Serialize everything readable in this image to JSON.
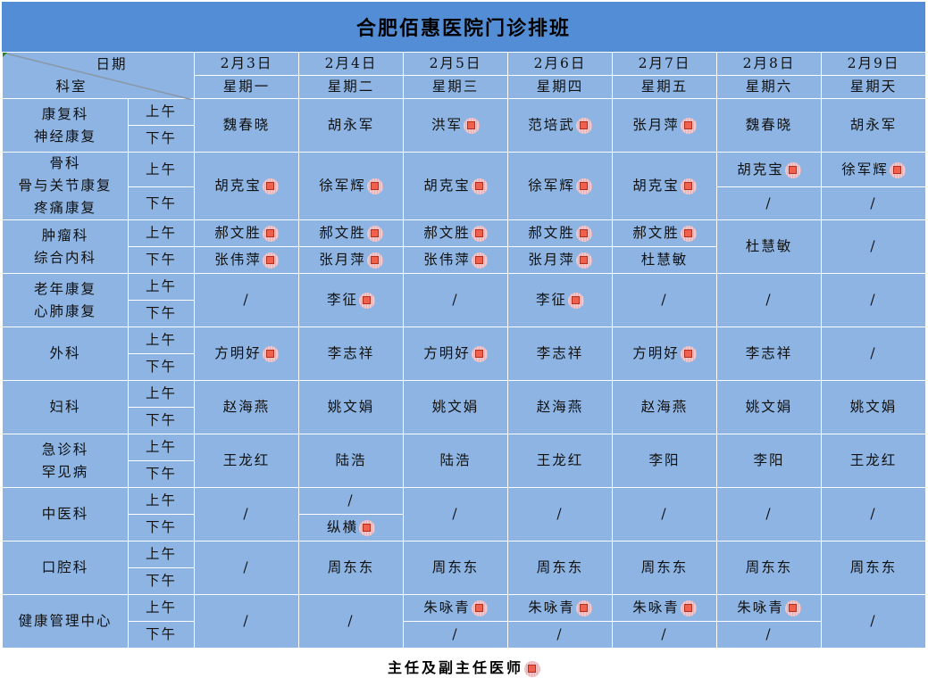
{
  "title": "合肥佰惠医院门诊排班",
  "header": {
    "date_label": "日期",
    "dept_label": "科室",
    "days": [
      {
        "date": "2月3日",
        "weekday": "星期一"
      },
      {
        "date": "2月4日",
        "weekday": "星期二"
      },
      {
        "date": "2月5日",
        "weekday": "星期三"
      },
      {
        "date": "2月6日",
        "weekday": "星期四"
      },
      {
        "date": "2月7日",
        "weekday": "星期五"
      },
      {
        "date": "2月8日",
        "weekday": "星期六"
      },
      {
        "date": "2月9日",
        "weekday": "星期天"
      }
    ]
  },
  "am_label": "上午",
  "pm_label": "下午",
  "colors": {
    "title_bg": "#538dd5",
    "cell_bg": "#8db4e2",
    "marker": "#f0604c"
  },
  "departments": [
    {
      "names": [
        "康复科",
        "神经康复"
      ],
      "cells": [
        {
          "all": {
            "n": "魏春晓"
          }
        },
        {
          "all": {
            "n": "胡永军"
          }
        },
        {
          "all": {
            "n": "洪军",
            "chief": true
          }
        },
        {
          "all": {
            "n": "范培武",
            "chief": true
          }
        },
        {
          "all": {
            "n": "张月萍",
            "chief": true
          }
        },
        {
          "all": {
            "n": "魏春晓"
          }
        },
        {
          "all": {
            "n": "胡永军"
          }
        }
      ]
    },
    {
      "names": [
        "骨科",
        "骨与关节康复",
        "疼痛康复"
      ],
      "cells": [
        {
          "all": {
            "n": "胡克宝",
            "chief": true
          }
        },
        {
          "all": {
            "n": "徐军辉",
            "chief": true
          }
        },
        {
          "all": {
            "n": "胡克宝",
            "chief": true
          }
        },
        {
          "all": {
            "n": "徐军辉",
            "chief": true
          }
        },
        {
          "all": {
            "n": "胡克宝",
            "chief": true
          }
        },
        {
          "am": {
            "n": "胡克宝",
            "chief": true
          },
          "pm": {
            "n": "/"
          }
        },
        {
          "am": {
            "n": "徐军辉",
            "chief": true
          },
          "pm": {
            "n": "/"
          }
        }
      ]
    },
    {
      "names": [
        "肿瘤科",
        "综合内科"
      ],
      "cells": [
        {
          "am": {
            "n": "郝文胜",
            "chief": true
          },
          "pm": {
            "n": "张伟萍",
            "chief": true
          }
        },
        {
          "am": {
            "n": "郝文胜",
            "chief": true
          },
          "pm": {
            "n": "张月萍",
            "chief": true
          }
        },
        {
          "am": {
            "n": "郝文胜",
            "chief": true
          },
          "pm": {
            "n": "张伟萍",
            "chief": true
          }
        },
        {
          "am": {
            "n": "郝文胜",
            "chief": true
          },
          "pm": {
            "n": "张月萍",
            "chief": true
          }
        },
        {
          "am": {
            "n": "郝文胜",
            "chief": true
          },
          "pm": {
            "n": "杜慧敏"
          }
        },
        {
          "all": {
            "n": "杜慧敏"
          }
        },
        {
          "all": {
            "n": "/"
          }
        }
      ]
    },
    {
      "names": [
        "老年康复",
        "心肺康复"
      ],
      "cells": [
        {
          "all": {
            "n": "/"
          }
        },
        {
          "all": {
            "n": "李征",
            "chief": true
          }
        },
        {
          "all": {
            "n": "/"
          }
        },
        {
          "all": {
            "n": "李征",
            "chief": true
          }
        },
        {
          "all": {
            "n": "/"
          }
        },
        {
          "all": {
            "n": "/"
          }
        },
        {
          "all": {
            "n": "/"
          }
        }
      ]
    },
    {
      "names": [
        "外科"
      ],
      "cells": [
        {
          "all": {
            "n": "方明好",
            "chief": true
          }
        },
        {
          "all": {
            "n": "李志祥"
          }
        },
        {
          "all": {
            "n": "方明好",
            "chief": true
          }
        },
        {
          "all": {
            "n": "李志祥"
          }
        },
        {
          "all": {
            "n": "方明好",
            "chief": true
          }
        },
        {
          "all": {
            "n": "李志祥"
          }
        },
        {
          "all": {
            "n": "/"
          }
        }
      ]
    },
    {
      "names": [
        "妇科"
      ],
      "cells": [
        {
          "all": {
            "n": "赵海燕"
          }
        },
        {
          "all": {
            "n": "姚文娟"
          }
        },
        {
          "all": {
            "n": "姚文娟"
          }
        },
        {
          "all": {
            "n": "赵海燕"
          }
        },
        {
          "all": {
            "n": "赵海燕"
          }
        },
        {
          "all": {
            "n": "姚文娟"
          }
        },
        {
          "all": {
            "n": "姚文娟"
          }
        }
      ]
    },
    {
      "names": [
        "急诊科",
        "罕见病"
      ],
      "cells": [
        {
          "all": {
            "n": "王龙红"
          }
        },
        {
          "all": {
            "n": "陆浩"
          }
        },
        {
          "all": {
            "n": "陆浩"
          }
        },
        {
          "all": {
            "n": "王龙红"
          }
        },
        {
          "all": {
            "n": "李阳"
          }
        },
        {
          "all": {
            "n": "李阳"
          }
        },
        {
          "all": {
            "n": "王龙红"
          }
        }
      ]
    },
    {
      "names": [
        "中医科"
      ],
      "cells": [
        {
          "all": {
            "n": "/"
          }
        },
        {
          "am": {
            "n": "/"
          },
          "pm": {
            "n": "纵横",
            "chief": true
          }
        },
        {
          "all": {
            "n": "/"
          }
        },
        {
          "all": {
            "n": "/"
          }
        },
        {
          "all": {
            "n": "/"
          }
        },
        {
          "all": {
            "n": "/"
          }
        },
        {
          "all": {
            "n": "/"
          }
        }
      ]
    },
    {
      "names": [
        "口腔科"
      ],
      "cells": [
        {
          "all": {
            "n": "/"
          }
        },
        {
          "all": {
            "n": "周东东"
          }
        },
        {
          "all": {
            "n": "周东东"
          }
        },
        {
          "all": {
            "n": "周东东"
          }
        },
        {
          "all": {
            "n": "周东东"
          }
        },
        {
          "all": {
            "n": "周东东"
          }
        },
        {
          "all": {
            "n": "周东东"
          }
        }
      ]
    },
    {
      "names": [
        "健康管理中心"
      ],
      "cells": [
        {
          "all": {
            "n": "/"
          }
        },
        {
          "all": {
            "n": "/"
          }
        },
        {
          "am": {
            "n": "朱咏青",
            "chief": true
          },
          "pm": {
            "n": "/"
          }
        },
        {
          "am": {
            "n": "朱咏青",
            "chief": true
          },
          "pm": {
            "n": "/"
          }
        },
        {
          "am": {
            "n": "朱咏青",
            "chief": true
          },
          "pm": {
            "n": "/"
          }
        },
        {
          "am": {
            "n": "朱咏青",
            "chief": true
          },
          "pm": {
            "n": "/"
          }
        },
        {
          "all": {
            "n": "/"
          }
        }
      ]
    }
  ],
  "footer": {
    "legend_label": "主任及副主任医师"
  }
}
